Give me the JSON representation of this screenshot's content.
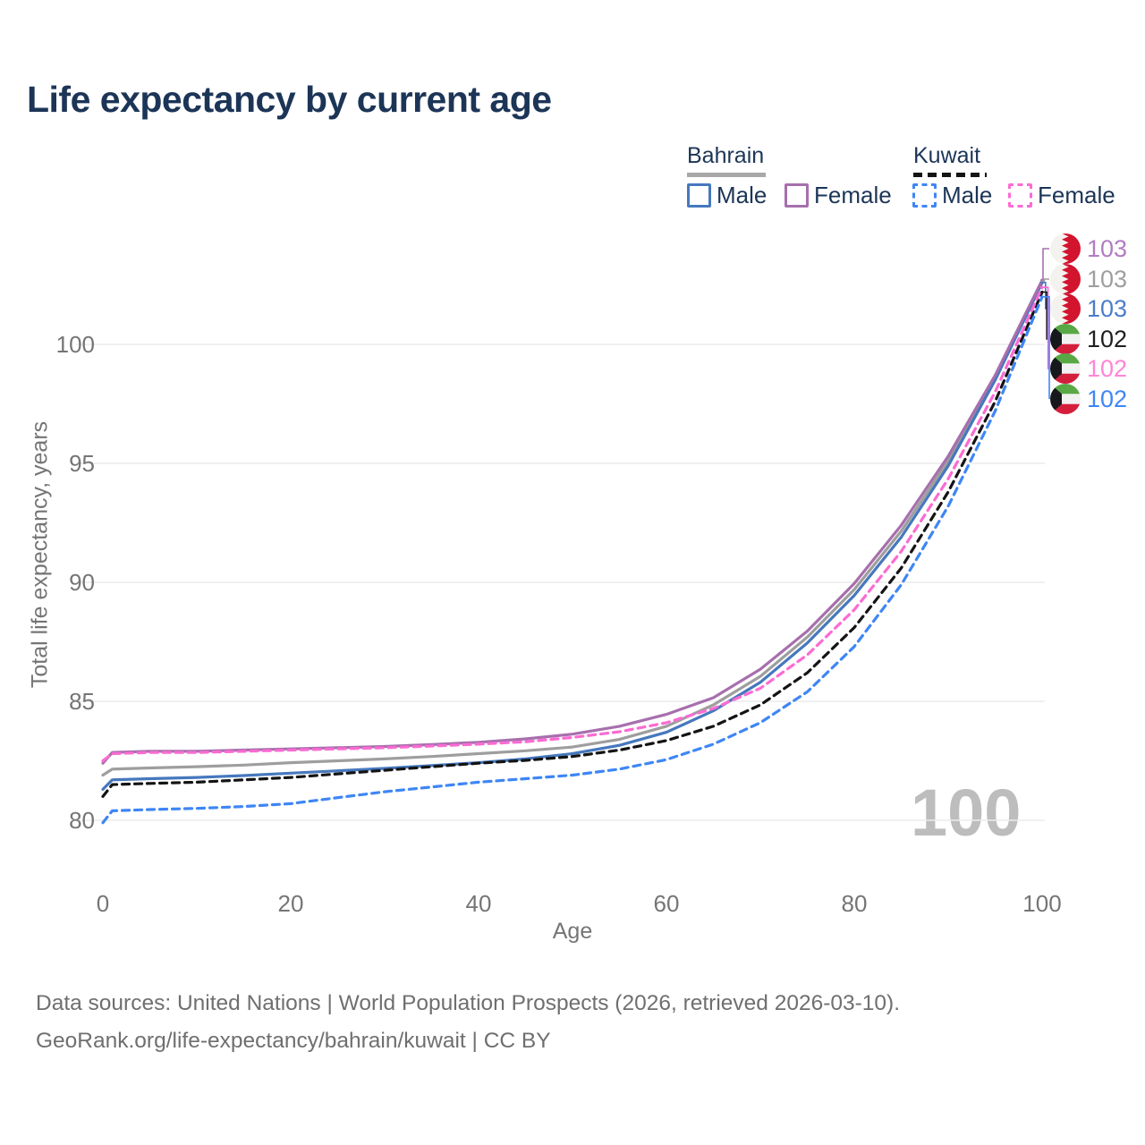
{
  "title": "Life expectancy by current age",
  "legend": {
    "groups": [
      {
        "name": "Bahrain",
        "line_style": "solid",
        "line_color": "#a8a8a8",
        "items": [
          {
            "label": "Male",
            "color": "#4678bd",
            "dashed": false
          },
          {
            "label": "Female",
            "color": "#a76fad",
            "dashed": false
          }
        ]
      },
      {
        "name": "Kuwait",
        "line_style": "dashed",
        "line_color": "#141414",
        "items": [
          {
            "label": "Male",
            "color": "#3e86f5",
            "dashed": true
          },
          {
            "label": "Female",
            "color": "#fb6bd3",
            "dashed": true
          }
        ]
      }
    ]
  },
  "chart_data": {
    "type": "line",
    "title": "Life expectancy by current age",
    "xlabel": "Age",
    "ylabel": "Total life expectancy, years",
    "xlim": [
      0,
      100
    ],
    "ylim": [
      79,
      104
    ],
    "xticks": [
      0,
      20,
      40,
      60,
      80,
      100
    ],
    "yticks": [
      80,
      85,
      90,
      95,
      100
    ],
    "grid": true,
    "legend_position": "top-right",
    "x_ages": [
      0,
      1,
      5,
      10,
      15,
      20,
      25,
      30,
      35,
      40,
      45,
      50,
      55,
      60,
      65,
      70,
      75,
      80,
      85,
      90,
      95,
      100
    ],
    "series": [
      {
        "name": "Bahrain Both sexes",
        "country": "Bahrain",
        "sex": "Both",
        "color": "#9e9e9e",
        "dashed": false,
        "values": [
          81.9,
          82.15,
          82.2,
          82.25,
          82.32,
          82.42,
          82.5,
          82.58,
          82.68,
          82.8,
          82.92,
          83.08,
          83.4,
          83.95,
          84.85,
          86.05,
          87.7,
          89.7,
          92.15,
          95.1,
          98.6,
          102.65
        ]
      },
      {
        "name": "Bahrain Male",
        "country": "Bahrain",
        "sex": "Male",
        "color": "#4678bd",
        "dashed": false,
        "values": [
          81.3,
          81.7,
          81.75,
          81.8,
          81.88,
          81.98,
          82.08,
          82.18,
          82.3,
          82.42,
          82.58,
          82.8,
          83.15,
          83.7,
          84.6,
          85.8,
          87.45,
          89.45,
          91.9,
          94.9,
          98.5,
          102.6
        ]
      },
      {
        "name": "Bahrain Female",
        "country": "Bahrain",
        "sex": "Female",
        "color": "#a76fad",
        "dashed": false,
        "values": [
          82.4,
          82.85,
          82.9,
          82.9,
          82.95,
          83.0,
          83.05,
          83.1,
          83.18,
          83.28,
          83.42,
          83.62,
          83.95,
          84.45,
          85.15,
          86.35,
          87.95,
          89.95,
          92.4,
          95.3,
          98.7,
          102.7
        ]
      },
      {
        "name": "Kuwait Both sexes",
        "country": "Kuwait",
        "sex": "Both",
        "color": "#141414",
        "dashed": true,
        "values": [
          81.0,
          81.5,
          81.55,
          81.6,
          81.7,
          81.8,
          81.95,
          82.1,
          82.25,
          82.4,
          82.52,
          82.68,
          82.95,
          83.35,
          83.95,
          84.85,
          86.2,
          88.1,
          90.6,
          93.8,
          97.6,
          102.2
        ]
      },
      {
        "name": "Kuwait Female",
        "country": "Kuwait",
        "sex": "Female",
        "color": "#fb6bd3",
        "dashed": true,
        "values": [
          82.5,
          82.8,
          82.85,
          82.85,
          82.9,
          82.95,
          83.0,
          83.05,
          83.12,
          83.2,
          83.3,
          83.48,
          83.72,
          84.1,
          84.7,
          85.55,
          86.95,
          88.85,
          91.3,
          94.35,
          98.0,
          102.4
        ]
      },
      {
        "name": "Kuwait Male",
        "country": "Kuwait",
        "sex": "Male",
        "color": "#3e86f5",
        "dashed": true,
        "values": [
          79.9,
          80.4,
          80.45,
          80.5,
          80.58,
          80.7,
          80.95,
          81.2,
          81.4,
          81.6,
          81.75,
          81.9,
          82.15,
          82.55,
          83.2,
          84.1,
          85.4,
          87.3,
          89.9,
          93.2,
          97.2,
          102.0
        ]
      }
    ]
  },
  "axis": {
    "x_ticks": [
      "0",
      "20",
      "40",
      "60",
      "80",
      "100"
    ],
    "y_ticks": [
      "100",
      "95",
      "90",
      "85",
      "80"
    ],
    "xlabel": "Age",
    "ylabel": "Total life expectancy, years"
  },
  "endpoint_labels": [
    {
      "value": "103",
      "color": "#b27cc0",
      "flag": "bahrain-flag-icon",
      "flag_href": "#flag-bahrain",
      "series": "Bahrain Female"
    },
    {
      "value": "103",
      "color": "#9e9e9e",
      "flag": "bahrain-flag-icon",
      "flag_href": "#flag-bahrain",
      "series": "Bahrain Both sexes"
    },
    {
      "value": "103",
      "color": "#4b7dc9",
      "flag": "bahrain-flag-icon",
      "flag_href": "#flag-bahrain",
      "series": "Bahrain Male"
    },
    {
      "value": "102",
      "color": "#1f1f1f",
      "flag": "kuwait-flag-icon",
      "flag_href": "#flag-kuwait",
      "series": "Kuwait Both sexes"
    },
    {
      "value": "102",
      "color": "#ff85d6",
      "flag": "kuwait-flag-icon",
      "flag_href": "#flag-kuwait",
      "series": "Kuwait Female"
    },
    {
      "value": "102",
      "color": "#3e86f5",
      "flag": "kuwait-flag-icon",
      "flag_href": "#flag-kuwait",
      "series": "Kuwait Male"
    }
  ],
  "watermark": "100",
  "footer": {
    "line1": "Data sources: United Nations | World Population Prospects (2026, retrieved 2026-03-10).",
    "line2": "GeoRank.org/life-expectancy/bahrain/kuwait | CC BY"
  }
}
